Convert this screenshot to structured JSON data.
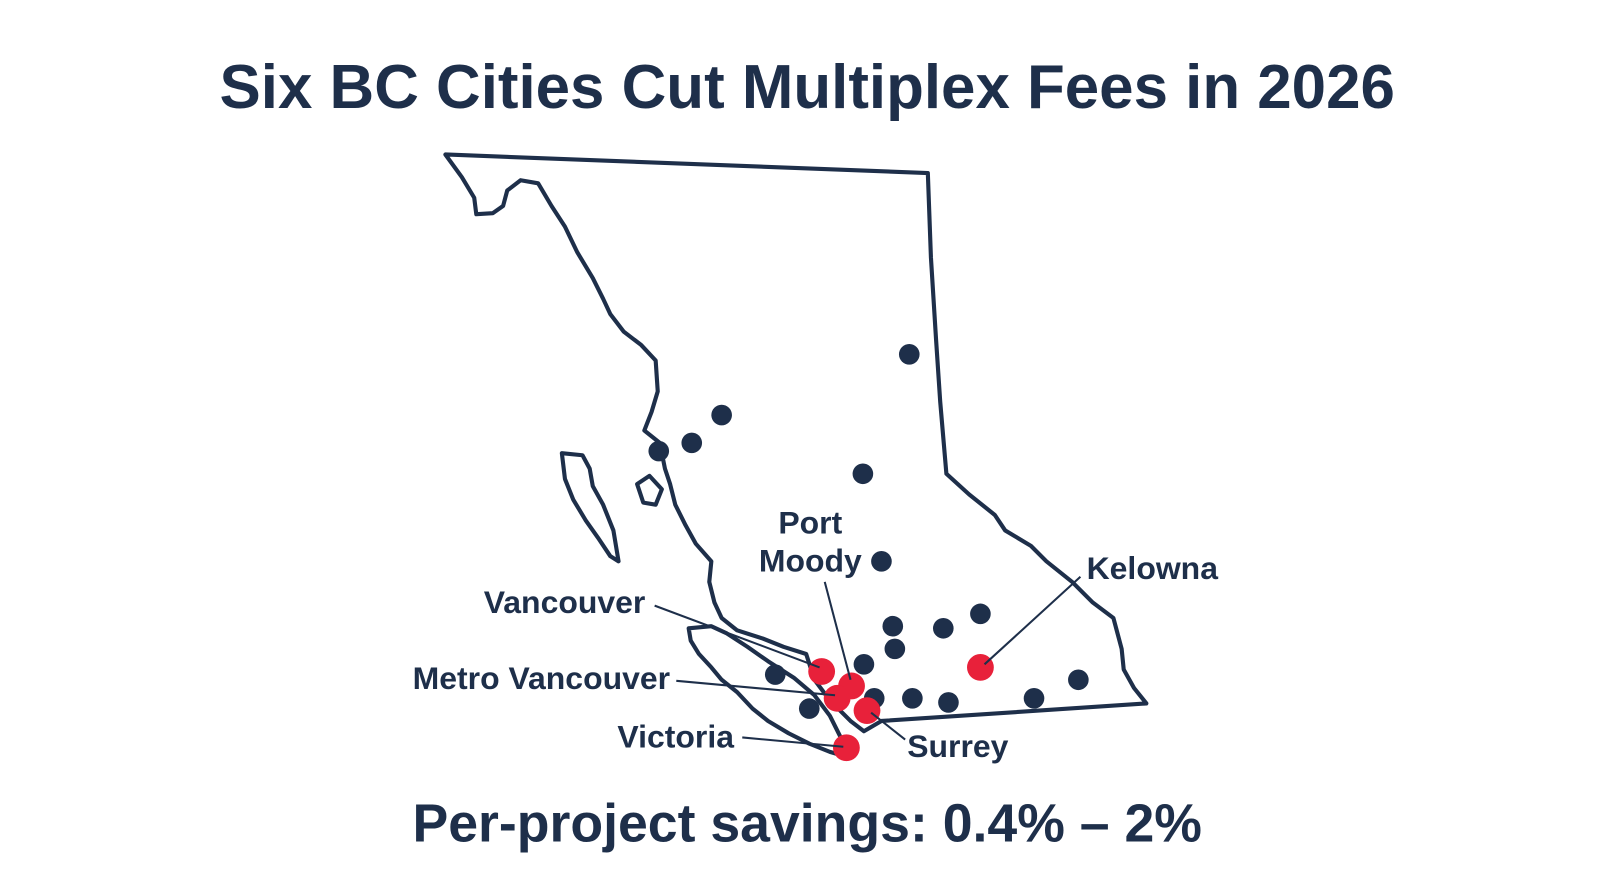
{
  "title": "Six BC Cities Cut Multiplex Fees in 2026",
  "labels": {
    "port_moody": [
      "Port",
      "Moody"
    ],
    "kelowna": "Kelowna",
    "vancouver": "Vancouver",
    "metro_vancouver": "Metro Vancouver",
    "victoria": "Victoria",
    "surrey": "Surrey"
  },
  "footer": "Per-project savings: 0.4% – 2%"
}
